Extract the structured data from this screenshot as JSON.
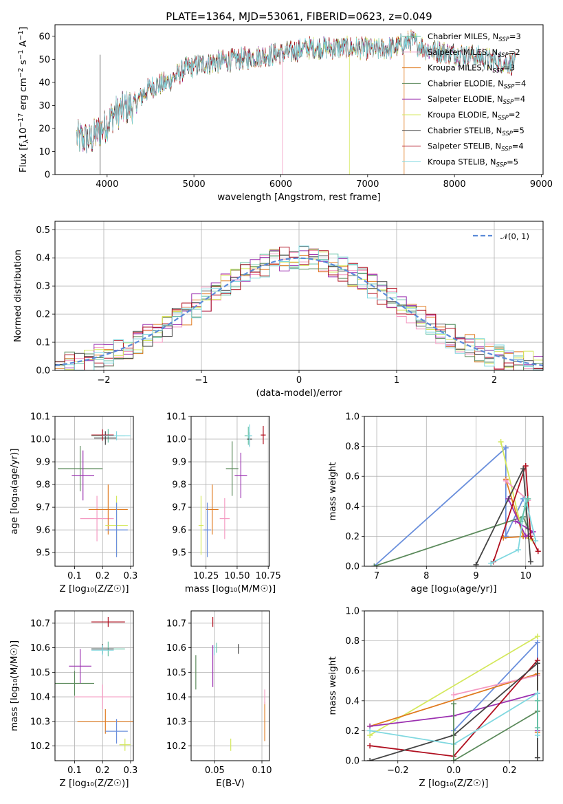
{
  "colors": {
    "chabrier_miles": "#66c2a5",
    "salpeter_miles": "#f49ac2",
    "kroupa_miles": "#e07b20",
    "chabrier_elodie": "#5b8a5b",
    "salpeter_elodie": "#9b30b0",
    "kroupa_elodie": "#d4e85c",
    "chabrier_stelib": "#444444",
    "salpeter_stelib": "#b01020",
    "kroupa_stelib": "#80d8e0",
    "gauss": "#5b8ad8",
    "blue": "#6a8fdc"
  },
  "chart_data": [
    {
      "id": "spectrum",
      "type": "line",
      "title": "PLATE=1364, MJD=53061, FIBERID=0623, z=0.049",
      "xlabel": "wavelength [Angstrom, rest frame]",
      "ylabel": "Flux [f_λ10^-17 erg cm^-2 s^-1 A^-1]",
      "xlim": [
        3400,
        9020
      ],
      "ylim": [
        0,
        65
      ],
      "xticks": [
        4000,
        5000,
        6000,
        7000,
        8000,
        9000
      ],
      "yticks": [
        0,
        10,
        20,
        30,
        40,
        50,
        60
      ],
      "grid": false,
      "legend_position": "right",
      "continuum": {
        "x": [
          3650,
          3800,
          3950,
          4100,
          4300,
          4500,
          4700,
          4900,
          5100,
          5300,
          5500,
          5700,
          5900,
          6100,
          6300,
          6500,
          6700,
          6900,
          7100,
          7300,
          7500,
          7700,
          7900,
          8100,
          8300,
          8500,
          8700
        ],
        "y": [
          16,
          15,
          20,
          27,
          30,
          38,
          40,
          46,
          48,
          49,
          50,
          51,
          52,
          53,
          55,
          55,
          55,
          55,
          54,
          55,
          58,
          54,
          53,
          52,
          51,
          49,
          48
        ]
      },
      "series": [
        {
          "name": "Chabrier MILES, N_SSP=3",
          "name_main": "Chabrier MILES, N",
          "name_sub": "SSP",
          "name_tail": "=3",
          "color_key": "chabrier_miles"
        },
        {
          "name": "Salpeter MILES, N_SSP=2",
          "name_main": "Salpeter MILES, N",
          "name_sub": "SSP",
          "name_tail": "=2",
          "color_key": "salpeter_miles"
        },
        {
          "name": "Kroupa MILES, N_SSP=3",
          "name_main": "Kroupa MILES, N",
          "name_sub": "SSP",
          "name_tail": "=3",
          "color_key": "kroupa_miles"
        },
        {
          "name": "Chabrier ELODIE, N_SSP=4",
          "name_main": "Chabrier ELODIE, N",
          "name_sub": "SSP",
          "name_tail": "=4",
          "color_key": "chabrier_elodie"
        },
        {
          "name": "Salpeter ELODIE, N_SSP=4",
          "name_main": "Salpeter ELODIE, N",
          "name_sub": "SSP",
          "name_tail": "=4",
          "color_key": "salpeter_elodie"
        },
        {
          "name": "Kroupa ELODIE, N_SSP=2",
          "name_main": "Kroupa ELODIE, N",
          "name_sub": "SSP",
          "name_tail": "=2",
          "color_key": "kroupa_elodie"
        },
        {
          "name": "Chabrier STELIB, N_SSP=5",
          "name_main": "Chabrier STELIB, N",
          "name_sub": "SSP",
          "name_tail": "=5",
          "color_key": "chabrier_stelib"
        },
        {
          "name": "Salpeter STELIB, N_SSP=4",
          "name_main": "Salpeter STELIB, N",
          "name_sub": "SSP",
          "name_tail": "=4",
          "color_key": "salpeter_stelib"
        },
        {
          "name": "Kroupa STELIB, N_SSP=5",
          "name_main": "Kroupa STELIB, N",
          "name_sub": "SSP",
          "name_tail": "=5",
          "color_key": "kroupa_stelib"
        }
      ]
    },
    {
      "id": "residuals",
      "type": "area",
      "xlabel": "(data-model)/error",
      "ylabel": "Normed distribution",
      "xlim": [
        -2.5,
        2.5
      ],
      "ylim": [
        0,
        0.53
      ],
      "xticks": [
        -2,
        -1,
        0,
        1,
        2
      ],
      "yticks": [
        0.0,
        0.1,
        0.2,
        0.3,
        0.4,
        0.5
      ],
      "xticklabels": [
        "−2",
        "−1",
        "0",
        "1",
        "2"
      ],
      "yticklabels": [
        "0.0",
        "0.1",
        "0.2",
        "0.3",
        "0.4",
        "0.5"
      ],
      "grid": true,
      "legend_position": "top-right",
      "legend_label": "𝒩(0, 1)",
      "bin_width": 0.1
    },
    {
      "id": "age_vs_z",
      "type": "scatter",
      "xlabel": "Z [log₁₀(Z/Z☉)]",
      "ylabel": "age  [log₁₀(age/yr)]",
      "xlim": [
        0.03,
        0.31
      ],
      "ylim": [
        9.44,
        10.1
      ],
      "xticks": [
        0.1,
        0.2,
        0.3
      ],
      "xticklabels": [
        "0.1",
        "0.2",
        "0.3"
      ],
      "yticks": [
        9.5,
        9.6,
        9.7,
        9.8,
        9.9,
        10.0,
        10.1
      ],
      "yticklabels": [
        "9.5",
        "9.6",
        "9.7",
        "9.8",
        "9.9",
        "10.0",
        "10.1"
      ],
      "grid": true,
      "points": [
        {
          "x": 0.22,
          "y": 10.015,
          "xerr": 0.06,
          "yerr": 0.03,
          "color_key": "chabrier_miles"
        },
        {
          "x": 0.18,
          "y": 9.65,
          "xerr": 0.06,
          "yerr": 0.1,
          "color_key": "salpeter_miles"
        },
        {
          "x": 0.22,
          "y": 9.69,
          "xerr": 0.07,
          "yerr": 0.11,
          "color_key": "kroupa_miles"
        },
        {
          "x": 0.12,
          "y": 9.87,
          "xerr": 0.08,
          "yerr": 0.1,
          "color_key": "chabrier_elodie"
        },
        {
          "x": 0.13,
          "y": 9.84,
          "xerr": 0.04,
          "yerr": 0.11,
          "color_key": "salpeter_elodie"
        },
        {
          "x": 0.25,
          "y": 9.62,
          "xerr": 0.04,
          "yerr": 0.13,
          "color_key": "kroupa_elodie"
        },
        {
          "x": 0.21,
          "y": 10.005,
          "xerr": 0.04,
          "yerr": 0.03,
          "color_key": "chabrier_stelib"
        },
        {
          "x": 0.2,
          "y": 10.018,
          "xerr": 0.04,
          "yerr": 0.025,
          "color_key": "salpeter_stelib"
        },
        {
          "x": 0.25,
          "y": 10.015,
          "xerr": 0.05,
          "yerr": 0.02,
          "color_key": "kroupa_stelib"
        },
        {
          "x": 0.25,
          "y": 9.6,
          "xerr": 0.04,
          "yerr": 0.12,
          "color_key": "blue"
        }
      ]
    },
    {
      "id": "age_vs_mass",
      "type": "scatter",
      "xlabel": "mass [log₁₀(M/M☉)]",
      "xlim": [
        10.13,
        10.76
      ],
      "ylim": [
        9.44,
        10.1
      ],
      "xticks": [
        10.25,
        10.5,
        10.75
      ],
      "xticklabels": [
        "10.25",
        "10.50",
        "10.75"
      ],
      "yticks": [
        9.5,
        9.6,
        9.7,
        9.8,
        9.9,
        10.0,
        10.1
      ],
      "yticklabels": [
        "9.5",
        "9.6",
        "9.7",
        "9.8",
        "9.9",
        "10.0",
        "10.1"
      ],
      "grid": true,
      "points": [
        {
          "x": 10.59,
          "y": 10.015,
          "xerr": 0.03,
          "yerr": 0.04,
          "color_key": "chabrier_miles"
        },
        {
          "x": 10.4,
          "y": 9.65,
          "xerr": 0.04,
          "yerr": 0.09,
          "color_key": "salpeter_miles"
        },
        {
          "x": 10.3,
          "y": 9.69,
          "xerr": 0.05,
          "yerr": 0.11,
          "color_key": "kroupa_miles"
        },
        {
          "x": 10.46,
          "y": 9.87,
          "xerr": 0.05,
          "yerr": 0.12,
          "color_key": "chabrier_elodie"
        },
        {
          "x": 10.53,
          "y": 9.84,
          "xerr": 0.05,
          "yerr": 0.1,
          "color_key": "salpeter_elodie"
        },
        {
          "x": 10.21,
          "y": 9.62,
          "xerr": 0.02,
          "yerr": 0.13,
          "color_key": "kroupa_elodie"
        },
        {
          "x": 10.6,
          "y": 10.0,
          "xerr": 0.02,
          "yerr": 0.03,
          "color_key": "chabrier_stelib"
        },
        {
          "x": 10.71,
          "y": 10.018,
          "xerr": 0.02,
          "yerr": 0.04,
          "color_key": "salpeter_stelib"
        },
        {
          "x": 10.6,
          "y": 10.015,
          "xerr": 0.02,
          "yerr": 0.05,
          "color_key": "kroupa_stelib"
        },
        {
          "x": 10.26,
          "y": 9.6,
          "xerr": 0.03,
          "yerr": 0.12,
          "color_key": "blue"
        }
      ]
    },
    {
      "id": "weight_vs_age",
      "type": "line",
      "xlabel": "age  [log₁₀(age/yr)]",
      "ylabel": "mass weight",
      "xlim": [
        6.75,
        10.35
      ],
      "ylim": [
        0,
        1.0
      ],
      "xticks": [
        7,
        8,
        9,
        10
      ],
      "xticklabels": [
        "7",
        "8",
        "9",
        "10"
      ],
      "yticks": [
        0.0,
        0.2,
        0.4,
        0.6,
        0.8,
        1.0
      ],
      "yticklabels": [
        "0.0",
        "0.2",
        "0.4",
        "0.6",
        "0.8",
        "1.0"
      ],
      "grid": true,
      "series": [
        {
          "color_key": "blue",
          "x": [
            6.95,
            9.6,
            9.6,
            9.95
          ],
          "y": [
            0.0,
            0.79,
            0.2,
            0.45
          ]
        },
        {
          "color_key": "chabrier_elodie",
          "x": [
            6.95,
            9.95,
            10.05,
            10.0
          ],
          "y": [
            0.0,
            0.33,
            0.25,
            0.4
          ]
        },
        {
          "color_key": "kroupa_elodie",
          "x": [
            9.5,
            9.95,
            10.15
          ],
          "y": [
            0.83,
            0.2,
            0.17
          ]
        },
        {
          "color_key": "kroupa_miles",
          "x": [
            9.6,
            9.95,
            10.05,
            9.55
          ],
          "y": [
            0.58,
            0.2,
            0.2,
            0.19
          ]
        },
        {
          "color_key": "salpeter_miles",
          "x": [
            9.6,
            10.05
          ],
          "y": [
            0.57,
            0.44
          ]
        },
        {
          "color_key": "salpeter_elodie",
          "x": [
            9.65,
            10.0,
            10.15,
            9.8
          ],
          "y": [
            0.45,
            0.2,
            0.23,
            0.3
          ]
        },
        {
          "color_key": "salpeter_stelib",
          "x": [
            9.35,
            10.0,
            10.1,
            10.25
          ],
          "y": [
            0.03,
            0.67,
            0.2,
            0.1
          ]
        },
        {
          "color_key": "chabrier_stelib",
          "x": [
            9.0,
            9.95,
            10.1
          ],
          "y": [
            0.01,
            0.65,
            0.03
          ]
        },
        {
          "color_key": "kroupa_stelib",
          "x": [
            9.3,
            9.85,
            10.0,
            10.2
          ],
          "y": [
            0.02,
            0.11,
            0.45,
            0.17
          ]
        },
        {
          "color_key": "chabrier_miles",
          "x": [
            9.9,
            10.05
          ],
          "y": [
            0.3,
            0.45
          ]
        }
      ]
    },
    {
      "id": "mass_vs_z",
      "type": "scatter",
      "xlabel": "Z [log₁₀(Z/Z☉)]",
      "ylabel": "mass [log₁₀(M/M☉)]",
      "xlim": [
        0.03,
        0.31
      ],
      "ylim": [
        10.14,
        10.75
      ],
      "xticks": [
        0.1,
        0.2,
        0.3
      ],
      "xticklabels": [
        "0.1",
        "0.2",
        "0.3"
      ],
      "yticks": [
        10.2,
        10.3,
        10.4,
        10.5,
        10.6,
        10.7
      ],
      "yticklabels": [
        "10.2",
        "10.3",
        "10.4",
        "10.5",
        "10.6",
        "10.7"
      ],
      "grid": true,
      "points": [
        {
          "x": 0.22,
          "y": 10.595,
          "xerr": 0.06,
          "yerr": 0.03,
          "color_key": "chabrier_miles"
        },
        {
          "x": 0.2,
          "y": 10.4,
          "xerr": 0.1,
          "yerr": 0.05,
          "color_key": "salpeter_miles"
        },
        {
          "x": 0.21,
          "y": 10.3,
          "xerr": 0.1,
          "yerr": 0.05,
          "color_key": "kroupa_miles"
        },
        {
          "x": 0.1,
          "y": 10.455,
          "xerr": 0.07,
          "yerr": 0.05,
          "color_key": "chabrier_elodie"
        },
        {
          "x": 0.12,
          "y": 10.525,
          "xerr": 0.04,
          "yerr": 0.07,
          "color_key": "salpeter_elodie"
        },
        {
          "x": 0.28,
          "y": 10.205,
          "xerr": 0.02,
          "yerr": 0.025,
          "color_key": "kroupa_elodie"
        },
        {
          "x": 0.2,
          "y": 10.595,
          "xerr": 0.04,
          "yerr": 0.02,
          "color_key": "chabrier_stelib"
        },
        {
          "x": 0.22,
          "y": 10.705,
          "xerr": 0.06,
          "yerr": 0.02,
          "color_key": "salpeter_stelib"
        },
        {
          "x": 0.2,
          "y": 10.59,
          "xerr": 0.04,
          "yerr": 0.02,
          "color_key": "kroupa_stelib"
        },
        {
          "x": 0.25,
          "y": 10.26,
          "xerr": 0.04,
          "yerr": 0.05,
          "color_key": "blue"
        }
      ]
    },
    {
      "id": "mass_vs_ebv",
      "type": "scatter",
      "xlabel": "E(B-V)",
      "xlim": [
        0.025,
        0.108
      ],
      "ylim": [
        10.14,
        10.75
      ],
      "xticks": [
        0.05,
        0.1
      ],
      "xticklabels": [
        "0.05",
        "0.10"
      ],
      "yticks": [
        10.2,
        10.3,
        10.4,
        10.5,
        10.6,
        10.7
      ],
      "yticklabels": [
        "10.2",
        "10.3",
        "10.4",
        "10.5",
        "10.6",
        "10.7"
      ],
      "grid": true,
      "points": [
        {
          "x": 0.075,
          "y": 10.595,
          "xerr": 0.0,
          "yerr": 0.02,
          "color_key": "chabrier_stelib"
        },
        {
          "x": 0.103,
          "y": 10.3,
          "xerr": 0.0,
          "yerr": 0.08,
          "color_key": "kroupa_miles"
        },
        {
          "x": 0.03,
          "y": 10.5,
          "xerr": 0.0,
          "yerr": 0.07,
          "color_key": "chabrier_elodie"
        },
        {
          "x": 0.048,
          "y": 10.525,
          "xerr": 0.0,
          "yerr": 0.085,
          "color_key": "salpeter_elodie"
        },
        {
          "x": 0.048,
          "y": 10.705,
          "xerr": 0.0,
          "yerr": 0.02,
          "color_key": "salpeter_stelib"
        },
        {
          "x": 0.05,
          "y": 10.59,
          "xerr": 0.0,
          "yerr": 0.02,
          "color_key": "kroupa_stelib"
        },
        {
          "x": 0.067,
          "y": 10.205,
          "xerr": 0.0,
          "yerr": 0.025,
          "color_key": "kroupa_elodie"
        },
        {
          "x": 0.052,
          "y": 10.6,
          "xerr": 0.0,
          "yerr": 0.02,
          "color_key": "chabrier_miles"
        },
        {
          "x": 0.103,
          "y": 10.4,
          "xerr": 0.0,
          "yerr": 0.03,
          "color_key": "salpeter_miles"
        }
      ]
    },
    {
      "id": "weight_vs_z",
      "type": "line",
      "xlabel": "Z [log₁₀(Z/Z☉)]",
      "ylabel": "mass weight",
      "xlim": [
        -0.32,
        0.32
      ],
      "ylim": [
        0,
        1.0
      ],
      "xticks": [
        -0.2,
        0.0,
        0.2
      ],
      "xticklabels": [
        "−0.2",
        "0.0",
        "0.2"
      ],
      "yticks": [
        0.0,
        0.2,
        0.4,
        0.6,
        0.8,
        1.0
      ],
      "yticklabels": [
        "0.0",
        "0.2",
        "0.4",
        "0.6",
        "0.8",
        "1.0"
      ],
      "grid": true,
      "series": [
        {
          "color_key": "kroupa_elodie",
          "x": [
            -0.3,
            0.3
          ],
          "y": [
            0.17,
            0.83
          ]
        },
        {
          "color_key": "blue",
          "x": [
            0.0,
            0.3,
            0.3
          ],
          "y": [
            0.2,
            0.79,
            0.45
          ]
        },
        {
          "color_key": "kroupa_miles",
          "x": [
            -0.3,
            0.3,
            0.3
          ],
          "y": [
            0.23,
            0.58,
            0.19
          ]
        },
        {
          "color_key": "salpeter_miles",
          "x": [
            0.0,
            0.3
          ],
          "y": [
            0.44,
            0.57
          ]
        },
        {
          "color_key": "salpeter_elodie",
          "x": [
            -0.3,
            0.0,
            0.3,
            0.3
          ],
          "y": [
            0.23,
            0.3,
            0.45,
            0.2
          ]
        },
        {
          "color_key": "salpeter_stelib",
          "x": [
            -0.3,
            0.0,
            0.3
          ],
          "y": [
            0.1,
            0.03,
            0.67
          ]
        },
        {
          "color_key": "chabrier_stelib",
          "x": [
            -0.3,
            0.0,
            0.3,
            0.3
          ],
          "y": [
            0.0,
            0.17,
            0.65,
            0.02
          ]
        },
        {
          "color_key": "kroupa_stelib",
          "x": [
            -0.3,
            0.0,
            0.3,
            0.3
          ],
          "y": [
            0.2,
            0.11,
            0.45,
            0.17
          ]
        },
        {
          "color_key": "chabrier_elodie",
          "x": [
            0.0,
            0.0,
            0.3
          ],
          "y": [
            0.38,
            0.0,
            0.33
          ]
        },
        {
          "color_key": "chabrier_miles",
          "x": [
            0.3,
            0.3
          ],
          "y": [
            0.22,
            0.4
          ]
        }
      ]
    }
  ]
}
